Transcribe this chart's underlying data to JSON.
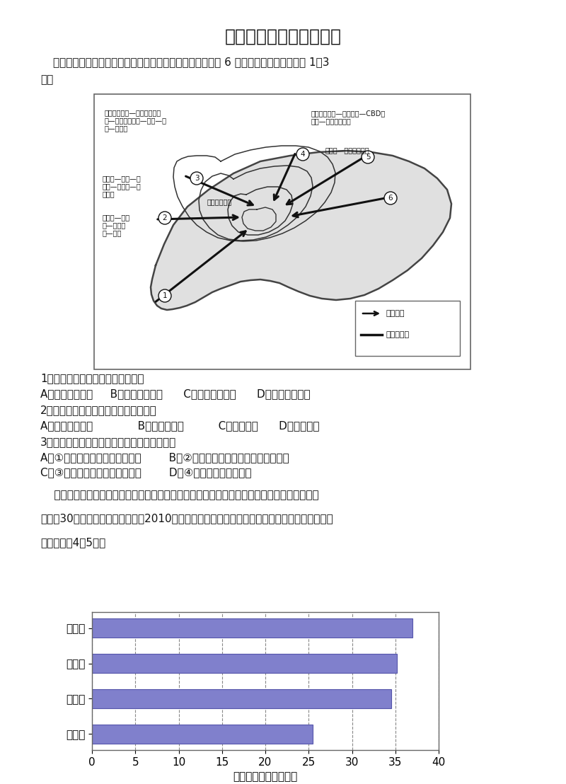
{
  "title": "届高三定位考试地理试题",
  "title_fontsize": 18,
  "intro_line1": "城市风道，又称为城市通风廊道。下图为北京市未来规划的 6 条城市风道。读图，回答 1～3",
  "intro_line2": "题。",
  "q1_num": "1．北京城市风道建设的主要目的是",
  "q1_opts": "A．缓解雾霾天气     B．分散城市职能      C．缓解交通拥堵      D．合理利用土地",
  "q2_num": "2．与城市风道设计相关度较低的因素是",
  "q2_opts": "A．城郊热岛环流             B．建筑物高度          C．人口密度      D．盛行风向",
  "q3_num": "3．关于图中北京部分城市风道的说法正确的是",
  "q3_ab": "A．①风道的东南方向可建化工厂        B．②风道主要沿绿地、公园、河湖布局",
  "q3_cd": "C．③风道需大量拆迁高大建筑物        D．④风道不利于保护故宫",
  "para1": "    人口年龄中位数指将全体人口按年龄大小的自然顺序排列时居于中间位置的人的年龄数值，中",
  "para2": "位数在30岁以上为老年型人口，读2010年浙江省衢州、丽水、金华、温州四市人口年龄中位数示",
  "para3": "意图，完成4～5题。",
  "bar_labels": [
    "衢州市",
    "丽水市",
    "金华市",
    "温州市"
  ],
  "bar_values": [
    37.0,
    35.2,
    34.5,
    25.5
  ],
  "bar_color": "#8080CC",
  "bar_edge": "#5555AA",
  "xlabel": "人口年龄中位数（岁）",
  "xlim": [
    0,
    40
  ],
  "xticks": [
    0,
    5,
    10,
    15,
    20,
    25,
    30,
    35,
    40
  ],
  "bg": "#ffffff",
  "black": "#111111",
  "map_label_topleft1": "太平郊野公园—东小口森林公",
  "map_label_topleft2": "园—奥林匹克公园—故宫—天",
  "map_label_topleft3": "坛—十里河",
  "map_label_topright1": "清河郊野公园—天坛公园—CBD东",
  "map_label_topright2": "扩区—东四环绿化带",
  "map_label_e1": "京密路—东五环绿化带",
  "map_label_w1": "植物园—昆明—是",
  "map_label_w2": "玉渊—玉渊滩—三",
  "map_label_w3": "门大街",
  "map_label_sw1": "永定河—岳各",
  "map_label_sw2": "庄—丽泽桥",
  "map_label_sw3": "西—南苑",
  "map_label_mid": "西五环绿化带",
  "legend_arrow": "通风廊道",
  "legend_line": "城区主干道",
  "font_body": 11,
  "font_small": 7
}
